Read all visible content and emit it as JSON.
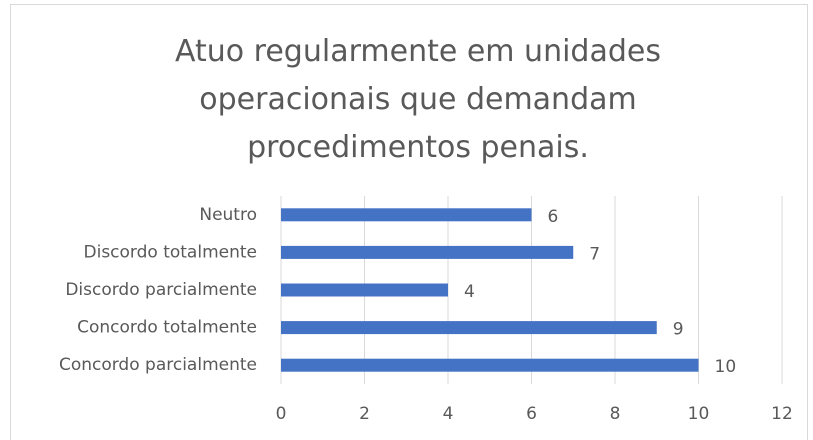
{
  "chart_data": {
    "type": "bar",
    "orientation": "horizontal",
    "title": "Atuo regularmente em unidades operacionais que demandam procedimentos penais.",
    "categories": [
      "Neutro",
      "Discordo totalmente",
      "Discordo parcialmente",
      "Concordo totalmente",
      "Concordo parcialmente"
    ],
    "values": [
      6,
      7,
      4,
      9,
      10
    ],
    "color": "#4472c4",
    "xlim": [
      0,
      12
    ],
    "xticks": [
      0,
      2,
      4,
      6,
      8,
      10,
      12
    ],
    "grid": true,
    "data_labels": true
  }
}
